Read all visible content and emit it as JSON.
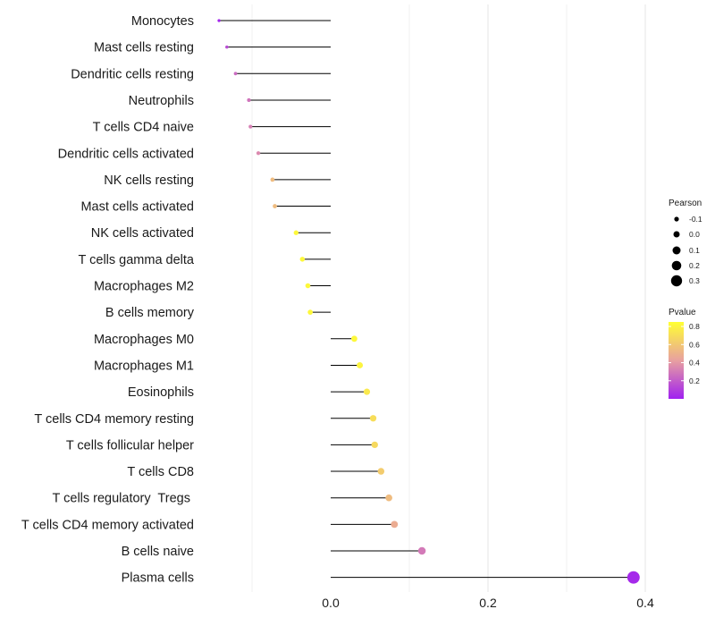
{
  "chart_data": {
    "type": "lollipop",
    "title": "",
    "xlabel": "",
    "ylabel": "",
    "xlim": [
      -0.17,
      0.4
    ],
    "x_ticks": [
      0.0,
      0.2,
      0.4
    ],
    "x_tick_labels": [
      "0.0",
      "0.2",
      "0.4"
    ],
    "grid": true,
    "legend_position": "right",
    "size_legend": {
      "title": "Pearson",
      "values": [
        -0.1,
        0.0,
        0.1,
        0.2,
        0.3
      ],
      "labels": [
        "-0.1",
        "0.0",
        "0.1",
        "0.2",
        "0.3"
      ]
    },
    "color_legend": {
      "title": "Pvalue",
      "range": [
        0.0,
        0.85
      ],
      "ticks": [
        0.2,
        0.4,
        0.6,
        0.8
      ],
      "tick_labels": [
        "0.2",
        "0.4",
        "0.6",
        "0.8"
      ],
      "low_color": "#a020f0",
      "mid_color": "#e8a0a0",
      "high_color": "#ffff33"
    },
    "categories": [
      "Monocytes",
      "Mast cells resting",
      "Dendritic cells resting",
      "Neutrophils",
      "T cells CD4 naive",
      "Dendritic cells activated",
      "NK cells resting",
      "Mast cells activated",
      "NK cells activated",
      "T cells gamma delta",
      "Macrophages M2",
      "B cells memory",
      "Macrophages M0",
      "Macrophages M1",
      "Eosinophils",
      "T cells CD4 memory resting",
      "T cells follicular helper",
      "T cells CD8",
      "T cells regulatory  Tregs ",
      "T cells CD4 memory activated",
      "B cells naive",
      "Plasma cells"
    ],
    "values": [
      -0.142,
      -0.132,
      -0.121,
      -0.104,
      -0.102,
      -0.092,
      -0.074,
      -0.071,
      -0.044,
      -0.036,
      -0.029,
      -0.026,
      0.03,
      0.037,
      0.046,
      0.054,
      0.056,
      0.064,
      0.074,
      0.081,
      0.116,
      0.385
    ],
    "pvalues": [
      0.02,
      0.15,
      0.25,
      0.28,
      0.32,
      0.35,
      0.55,
      0.55,
      0.82,
      0.82,
      0.82,
      0.82,
      0.82,
      0.8,
      0.75,
      0.7,
      0.68,
      0.62,
      0.55,
      0.48,
      0.3,
      0.03
    ]
  }
}
